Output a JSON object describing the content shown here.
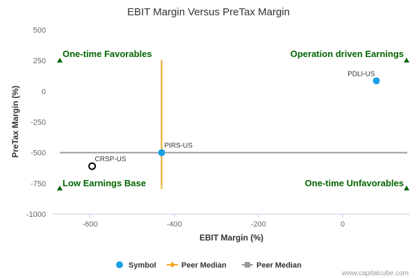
{
  "chart_data": {
    "type": "scatter",
    "title": "EBIT Margin Versus PreTax Margin",
    "xlabel": "EBIT Margin (%)",
    "ylabel": "PreTax Margin (%)",
    "xlim": [
      -690,
      160
    ],
    "ylim": [
      -1000,
      500
    ],
    "x_ticks": [
      -600,
      -400,
      -200,
      0
    ],
    "y_ticks": [
      500,
      250,
      0,
      -250,
      -500,
      -750,
      -1000
    ],
    "grid": false,
    "points": [
      {
        "label": "PDLI-US",
        "x": 80,
        "y": 85,
        "style": "filled",
        "color": "#1aa0e8"
      },
      {
        "label": "PIRS-US",
        "x": -430,
        "y": -500,
        "style": "filled",
        "color": "#1aa0e8"
      },
      {
        "label": "CRSP-US",
        "x": -595,
        "y": -610,
        "style": "hollow",
        "color": "#000000"
      }
    ],
    "peer_median_x": -430,
    "peer_median_y": -500,
    "peer_median_x_color": "#f5a623",
    "peer_median_y_color": "#999999",
    "quadrant_labels": {
      "top_left": "One-time Favorables",
      "top_right": "Operation driven Earnings",
      "bottom_left": "Low Earnings Base",
      "bottom_right": "One-time Unfavorables"
    },
    "quadrant_marker_color": "#006400",
    "legend": {
      "placement": "bottom",
      "items": [
        {
          "label": "Symbol",
          "kind": "dot",
          "color": "#1aa0e8"
        },
        {
          "label": "Peer Median",
          "kind": "line-diamond",
          "color": "#f5a623"
        },
        {
          "label": "Peer Median",
          "kind": "line-square",
          "color": "#999999"
        }
      ]
    },
    "credit": "www.capitalcube.com"
  }
}
